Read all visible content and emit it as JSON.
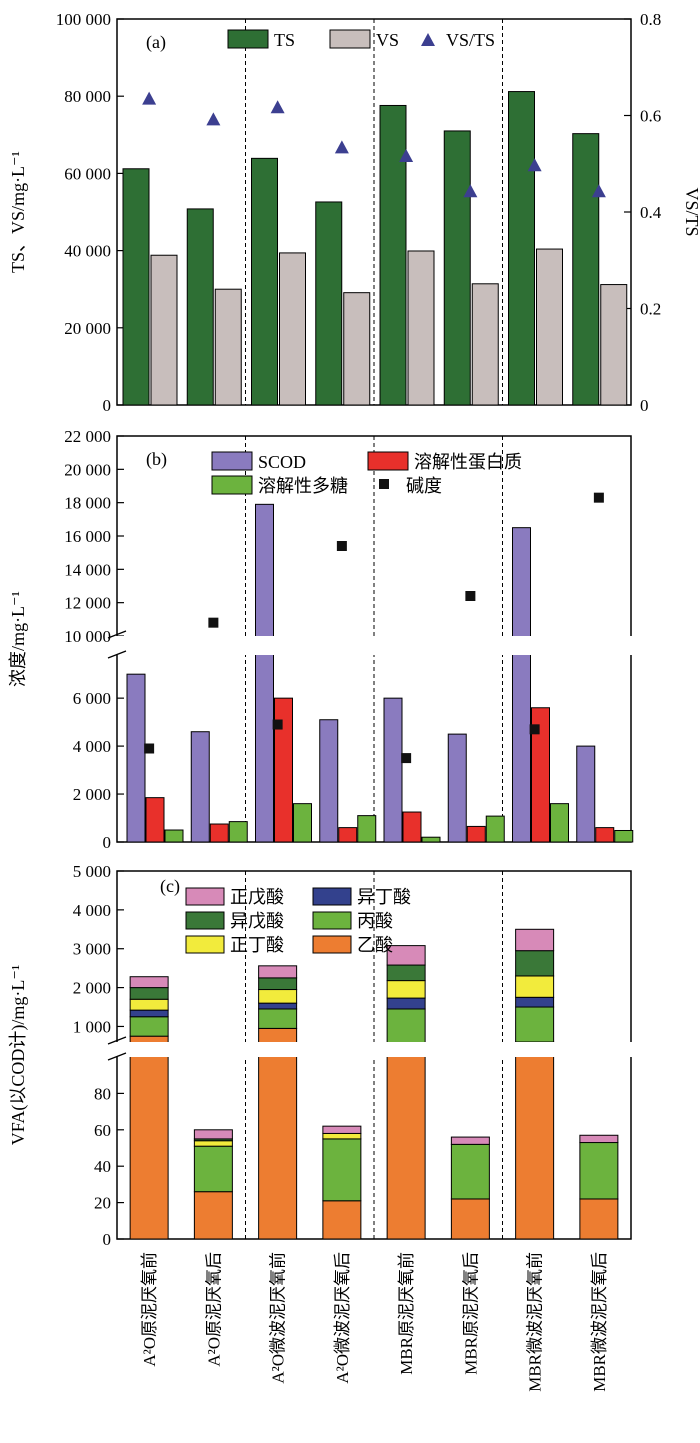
{
  "categories": [
    "A²O原泥厌氧前",
    "A²O原泥厌氧后",
    "A²O微波泥厌氧前",
    "A²O微波泥厌氧后",
    "MBR原泥厌氧前",
    "MBR原泥厌氧后",
    "MBR微波泥厌氧前",
    "MBR微波泥厌氧后"
  ],
  "chart_data": [
    {
      "panel": "(a)",
      "type": "bar",
      "ylabel": "TS、VS/mg·L⁻¹",
      "ylabel_right": "VS/TS",
      "ylim": [
        0,
        100000
      ],
      "ylim_right": [
        0,
        0.8
      ],
      "yticks": [
        {
          "value": 0,
          "label": "0"
        },
        {
          "value": 20000,
          "label": "20 000"
        },
        {
          "value": 40000,
          "label": "40 000"
        },
        {
          "value": 60000,
          "label": "60 000"
        },
        {
          "value": 80000,
          "label": "80 000"
        },
        {
          "value": 100000,
          "label": "100 000"
        }
      ],
      "yticks_right": [
        {
          "value": 0,
          "label": "0"
        },
        {
          "value": 0.2,
          "label": "0.2"
        },
        {
          "value": 0.4,
          "label": "0.4"
        },
        {
          "value": 0.6,
          "label": "0.6"
        },
        {
          "value": 0.8,
          "label": "0.8"
        }
      ],
      "series": [
        {
          "name": "TS",
          "kind": "bar",
          "color": "#2e6f34",
          "values": [
            61200,
            50800,
            63900,
            52600,
            77600,
            71000,
            81200,
            70300
          ]
        },
        {
          "name": "VS",
          "kind": "bar",
          "color": "#c8bebc",
          "values": [
            38800,
            30000,
            39400,
            29100,
            39900,
            31400,
            40400,
            31200
          ]
        },
        {
          "name": "VS/TS",
          "kind": "marker",
          "marker": "triangle",
          "color": "#3c3f90",
          "axis": "right",
          "values": [
            0.635,
            0.592,
            0.617,
            0.534,
            0.516,
            0.443,
            0.497,
            0.443
          ]
        }
      ],
      "legend_placement": "top"
    },
    {
      "panel": "(b)",
      "type": "bar",
      "ylabel": "浓度/mg·L⁻¹",
      "axis_break": [
        7800,
        10000
      ],
      "ylim": [
        0,
        22000
      ],
      "yticks": [
        {
          "value": 0,
          "label": "0"
        },
        {
          "value": 2000,
          "label": "2 000"
        },
        {
          "value": 4000,
          "label": "4 000"
        },
        {
          "value": 6000,
          "label": "6 000"
        },
        {
          "value": 10000,
          "label": "10 000"
        },
        {
          "value": 12000,
          "label": "12 000"
        },
        {
          "value": 14000,
          "label": "14 000"
        },
        {
          "value": 16000,
          "label": "16 000"
        },
        {
          "value": 18000,
          "label": "18 000"
        },
        {
          "value": 20000,
          "label": "20 000"
        },
        {
          "value": 22000,
          "label": "22 000"
        }
      ],
      "series": [
        {
          "name": "SCOD",
          "kind": "bar",
          "color": "#8a7bbf",
          "values": [
            7000,
            4600,
            17900,
            5100,
            6000,
            4500,
            16500,
            4000
          ]
        },
        {
          "name": "溶解性蛋白质",
          "kind": "bar",
          "color": "#e8302b",
          "values": [
            1850,
            750,
            6000,
            600,
            1250,
            650,
            5600,
            600
          ]
        },
        {
          "name": "溶解性多糖",
          "kind": "bar",
          "color": "#6cb33e",
          "values": [
            500,
            850,
            1600,
            1100,
            200,
            1080,
            1600,
            480
          ]
        },
        {
          "name": "碱度",
          "kind": "marker",
          "marker": "square",
          "color": "#111111",
          "values": [
            3900,
            10800,
            4900,
            15400,
            3500,
            12400,
            4700,
            18300
          ]
        }
      ],
      "legend_placement": "top"
    },
    {
      "panel": "(c)",
      "type": "bar",
      "stacked": true,
      "ylabel": "VFA(以COD计)/mg·L⁻¹",
      "axis_break": [
        100,
        600
      ],
      "ylim": [
        0,
        5000
      ],
      "yticks": [
        {
          "value": 0,
          "label": "0"
        },
        {
          "value": 20,
          "label": "20"
        },
        {
          "value": 40,
          "label": "40"
        },
        {
          "value": 60,
          "label": "60"
        },
        {
          "value": 80,
          "label": "80"
        },
        {
          "value": 1000,
          "label": "1 000"
        },
        {
          "value": 2000,
          "label": "2 000"
        },
        {
          "value": 3000,
          "label": "3 000"
        },
        {
          "value": 4000,
          "label": "4 000"
        },
        {
          "value": 5000,
          "label": "5 000"
        }
      ],
      "series": [
        {
          "name": "乙酸",
          "color": "#ed7d31",
          "values": [
            750,
            26,
            950,
            21,
            500,
            22,
            600,
            22
          ]
        },
        {
          "name": "丙酸",
          "color": "#6cb33e",
          "values": [
            500,
            25,
            500,
            34,
            950,
            30,
            900,
            31
          ]
        },
        {
          "name": "异丁酸",
          "color": "#33418d",
          "values": [
            170,
            0,
            150,
            0,
            280,
            0,
            250,
            0
          ]
        },
        {
          "name": "正丁酸",
          "color": "#f2eb3c",
          "values": [
            280,
            3,
            350,
            3,
            450,
            0,
            550,
            0
          ]
        },
        {
          "name": "异戊酸",
          "color": "#3a7838",
          "values": [
            300,
            1,
            300,
            0,
            400,
            0,
            650,
            0
          ]
        },
        {
          "name": "正戊酸",
          "color": "#d78ab8",
          "values": [
            280,
            5,
            310,
            4,
            500,
            4,
            550,
            4
          ]
        }
      ],
      "legend_order": [
        "正戊酸",
        "异丁酸",
        "异戊酸",
        "丙酸",
        "正丁酸",
        "乙酸"
      ],
      "legend_placement": "top-left"
    }
  ]
}
